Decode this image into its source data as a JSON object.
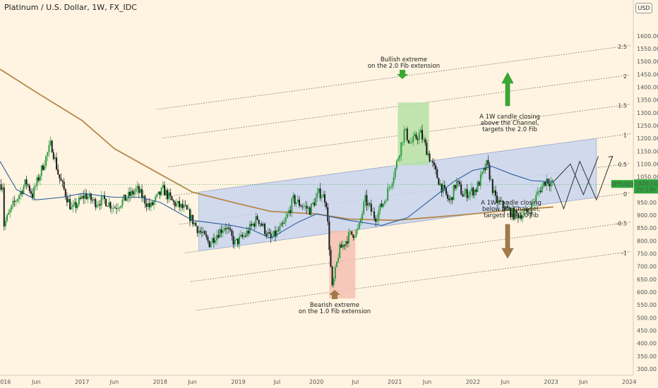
{
  "header": {
    "title": "Platinum / U.S. Dollar, 1W, FX_IDC",
    "currency_badge": "USD"
  },
  "price_tag": {
    "symbol": "XPTUSD",
    "price": "1020.50",
    "countdown": "2d 13h"
  },
  "colors": {
    "background": "#fef4e1",
    "up_candle": "#2e9e3e",
    "down_candle": "#1a1a1a",
    "channel_fill": "#c9d3ef",
    "ma_fast": "#2a5d9c",
    "ma_slow": "#b5894a",
    "bull_box": "#b6e0a6",
    "bear_box": "#f4c0b3",
    "arrow_up": "#3aa832",
    "arrow_down": "#a07a48",
    "price_tag": "#2ca53a"
  },
  "annotations": {
    "bullish": [
      "Bullish extreme",
      "on the 2.0 Fib extension"
    ],
    "bearish": [
      "Bearish extreme",
      "on the 1.0 Fib extension"
    ],
    "above": [
      "A 1W candle closing",
      "above the Channel,",
      "targets the 2.0 Fib"
    ],
    "below": [
      "A 1W candle closing",
      "below the Channel,",
      "targets the 1.0 Fib"
    ]
  },
  "chart_data": {
    "type": "candlestick",
    "title": "Platinum / U.S. Dollar, 1W, FX_IDC",
    "ylim": [
      275,
      1740
    ],
    "y_ticks": [
      300,
      350,
      400,
      450,
      500,
      550,
      600,
      650,
      700,
      750,
      800,
      850,
      900,
      950,
      1000,
      1050,
      1100,
      1150,
      1200,
      1250,
      1300,
      1350,
      1400,
      1450,
      1500,
      1550,
      1600
    ],
    "y_tick_labels": [
      "300.00",
      "350.00",
      "400.00",
      "450.00",
      "500.00",
      "550.00",
      "600.00",
      "650.00",
      "700.00",
      "750.00",
      "800.00",
      "850.00",
      "900.00",
      "950.00",
      "1000.00",
      "1050.00",
      "1100.00",
      "1150.00",
      "1200.00",
      "1250.00",
      "1300.00",
      "1350.00",
      "1400.00",
      "1450.00",
      "1500.00",
      "1550.00",
      "1600.00"
    ],
    "x_range": [
      "2015-12-15",
      "2024-01-20"
    ],
    "x_ticks": [
      {
        "label": "2016",
        "date": "2016-01-01"
      },
      {
        "label": "Jun",
        "date": "2016-06-01"
      },
      {
        "label": "2017",
        "date": "2017-01-01"
      },
      {
        "label": "Jun",
        "date": "2017-06-01"
      },
      {
        "label": "2018",
        "date": "2018-01-01"
      },
      {
        "label": "Jun",
        "date": "2018-06-01"
      },
      {
        "label": "2019",
        "date": "2019-01-01"
      },
      {
        "label": "Jul",
        "date": "2019-07-01"
      },
      {
        "label": "2020",
        "date": "2020-01-01"
      },
      {
        "label": "Jul",
        "date": "2020-07-01"
      },
      {
        "label": "2021",
        "date": "2021-01-01"
      },
      {
        "label": "Jun",
        "date": "2021-06-01"
      },
      {
        "label": "2022",
        "date": "2022-01-01"
      },
      {
        "label": "Jun",
        "date": "2022-06-01"
      },
      {
        "label": "2023",
        "date": "2023-01-01"
      },
      {
        "label": "Jun",
        "date": "2023-06-01"
      },
      {
        "label": "2024",
        "date": "2024-01-01"
      }
    ],
    "close_path": [
      [
        "2016-01-01",
        860
      ],
      [
        "2016-02-15",
        940
      ],
      [
        "2016-04-15",
        1030
      ],
      [
        "2016-05-15",
        980
      ],
      [
        "2016-07-01",
        1090
      ],
      [
        "2016-08-10",
        1180
      ],
      [
        "2016-09-15",
        1050
      ],
      [
        "2016-11-15",
        920
      ],
      [
        "2017-01-15",
        980
      ],
      [
        "2017-03-01",
        950
      ],
      [
        "2017-04-15",
        960
      ],
      [
        "2017-06-01",
        930
      ],
      [
        "2017-08-01",
        970
      ],
      [
        "2017-09-15",
        1000
      ],
      [
        "2017-11-15",
        930
      ],
      [
        "2018-01-15",
        1000
      ],
      [
        "2018-03-01",
        950
      ],
      [
        "2018-05-01",
        920
      ],
      [
        "2018-07-01",
        840
      ],
      [
        "2018-08-20",
        790
      ],
      [
        "2018-09-15",
        820
      ],
      [
        "2018-11-01",
        860
      ],
      [
        "2018-12-15",
        790
      ],
      [
        "2019-02-01",
        820
      ],
      [
        "2019-04-01",
        890
      ],
      [
        "2019-06-01",
        805
      ],
      [
        "2019-08-01",
        860
      ],
      [
        "2019-09-15",
        960
      ],
      [
        "2019-12-01",
        920
      ],
      [
        "2020-01-15",
        990
      ],
      [
        "2020-02-15",
        960
      ],
      [
        "2020-03-15",
        610
      ],
      [
        "2020-04-15",
        760
      ],
      [
        "2020-06-01",
        820
      ],
      [
        "2020-07-15",
        840
      ],
      [
        "2020-08-15",
        960
      ],
      [
        "2020-10-01",
        890
      ],
      [
        "2020-11-15",
        960
      ],
      [
        "2020-12-31",
        1070
      ],
      [
        "2021-02-15",
        1230
      ],
      [
        "2021-03-15",
        1180
      ],
      [
        "2021-05-01",
        1220
      ],
      [
        "2021-06-15",
        1120
      ],
      [
        "2021-08-01",
        1020
      ],
      [
        "2021-09-15",
        950
      ],
      [
        "2021-10-15",
        1030
      ],
      [
        "2021-11-15",
        980
      ],
      [
        "2022-01-15",
        1000
      ],
      [
        "2022-03-08",
        1100
      ],
      [
        "2022-04-15",
        960
      ],
      [
        "2022-05-15",
        940
      ],
      [
        "2022-07-15",
        900
      ],
      [
        "2022-09-15",
        910
      ],
      [
        "2022-11-10",
        1000
      ],
      [
        "2022-12-10",
        1040
      ],
      [
        "2023-01-12",
        1020.5
      ]
    ],
    "ma_fast": [
      [
        "2015-12-15",
        1110
      ],
      [
        "2016-03-01",
        1000
      ],
      [
        "2016-06-01",
        960
      ],
      [
        "2016-10-01",
        970
      ],
      [
        "2017-01-01",
        985
      ],
      [
        "2017-06-01",
        970
      ],
      [
        "2017-10-01",
        970
      ],
      [
        "2018-01-01",
        950
      ],
      [
        "2018-06-01",
        880
      ],
      [
        "2018-12-01",
        860
      ],
      [
        "2019-03-01",
        845
      ],
      [
        "2019-06-01",
        810
      ],
      [
        "2019-10-01",
        870
      ],
      [
        "2020-01-01",
        905
      ],
      [
        "2020-06-01",
        880
      ],
      [
        "2020-11-01",
        860
      ],
      [
        "2021-03-01",
        890
      ],
      [
        "2021-06-01",
        950
      ],
      [
        "2021-10-01",
        1030
      ],
      [
        "2022-01-01",
        1075
      ],
      [
        "2022-04-01",
        1090
      ],
      [
        "2022-07-01",
        1060
      ],
      [
        "2022-10-01",
        1035
      ],
      [
        "2023-01-12",
        1030
      ]
    ],
    "ma_slow": [
      [
        "2015-12-15",
        1470
      ],
      [
        "2016-06-01",
        1380
      ],
      [
        "2017-01-01",
        1270
      ],
      [
        "2017-06-01",
        1160
      ],
      [
        "2018-01-01",
        1060
      ],
      [
        "2018-06-01",
        990
      ],
      [
        "2019-01-01",
        945
      ],
      [
        "2019-06-01",
        915
      ],
      [
        "2020-01-01",
        905
      ],
      [
        "2020-06-01",
        885
      ],
      [
        "2021-01-01",
        880
      ],
      [
        "2021-06-01",
        890
      ],
      [
        "2022-01-01",
        905
      ],
      [
        "2022-06-01",
        918
      ],
      [
        "2023-01-12",
        932
      ]
    ],
    "channel": {
      "lower_start": [
        "2018-07-01",
        760
      ],
      "lower_end": [
        "2023-08-01",
        970
      ],
      "upper_start": [
        "2018-07-01",
        990
      ],
      "upper_end": [
        "2023-08-01",
        1200
      ],
      "fill_start": "2018-07-01",
      "fill_end": "2023-08-01"
    },
    "fib_levels": [
      {
        "label": "-1",
        "value": -1
      },
      {
        "label": "-0.5",
        "value": -0.5
      },
      {
        "label": "0",
        "value": 0
      },
      {
        "label": "0.5",
        "value": 0.5
      },
      {
        "label": "1",
        "value": 1
      },
      {
        "label": "1.5",
        "value": 1.5
      },
      {
        "label": "2",
        "value": 2
      },
      {
        "label": "2.5",
        "value": 2.5
      }
    ],
    "bull_box": {
      "x0": "2021-01-15",
      "x1": "2021-06-10",
      "y0": 1095,
      "y1": 1340
    },
    "bear_box": {
      "x0": "2020-03-01",
      "x1": "2020-07-01",
      "y0": 575,
      "y1": 840
    },
    "projection_above": [
      [
        "2023-01-12",
        1030
      ],
      [
        "2023-04-01",
        1100
      ],
      [
        "2023-06-01",
        980
      ],
      [
        "2023-08-10",
        1130
      ]
    ],
    "projection_below": [
      [
        "2023-01-12",
        1030
      ],
      [
        "2023-03-01",
        925
      ],
      [
        "2023-05-15",
        1110
      ],
      [
        "2023-08-01",
        960
      ],
      [
        "2023-10-15",
        1130
      ]
    ]
  }
}
